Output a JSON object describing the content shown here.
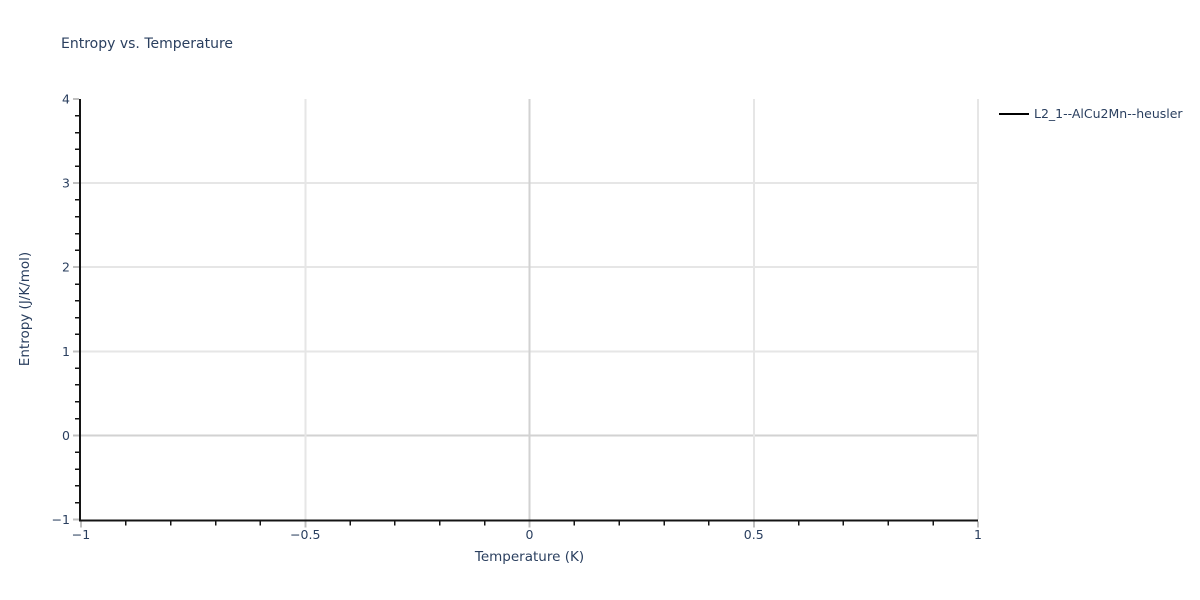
{
  "page": {
    "background_color": "#ffffff"
  },
  "chart_data": {
    "type": "line",
    "title": "Entropy vs. Temperature",
    "xlabel": "Temperature (K)",
    "ylabel": "Entropy (J/K/mol)",
    "xlim": [
      -1,
      1
    ],
    "ylim": [
      -1,
      4
    ],
    "x_major_ticks": [
      -1,
      -0.5,
      0,
      0.5,
      1
    ],
    "y_major_ticks": [
      -1,
      0,
      1,
      2,
      3,
      4
    ],
    "x_minor_step": 0.1,
    "y_minor_step": 0.2,
    "grid": true,
    "zeroline": true,
    "legend_position": "outside-top-right",
    "series": [
      {
        "name": "L2_1--AlCu2Mn--heusler",
        "color": "#000000",
        "x": [],
        "y": []
      }
    ],
    "colors": {
      "text": "#2a3f5f",
      "axis_line": "#141414",
      "gridline": "#e6e6e6",
      "zeroline": "#d2d2d2",
      "major_tick": "#c0c0c0",
      "minor_tick": "#141414"
    }
  }
}
